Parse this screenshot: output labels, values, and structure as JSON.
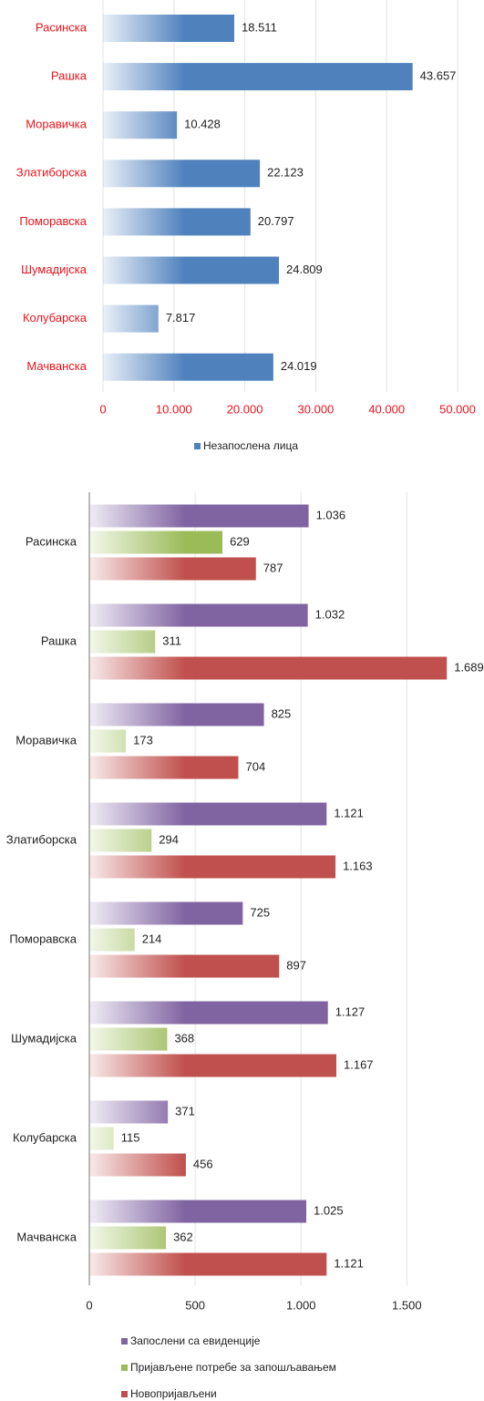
{
  "chart_data": [
    {
      "type": "bar",
      "orientation": "horizontal",
      "categories": [
        "Расинска",
        "Рашка",
        "Моравичка",
        "Златиборска",
        "Поморавска",
        "Шумадијска",
        "Колубарска",
        "Мачванска"
      ],
      "series": [
        {
          "name": "Незапослена лица",
          "color": "#4f81bd",
          "values": [
            18511,
            43657,
            10428,
            22123,
            20797,
            24809,
            7817,
            24019
          ],
          "value_labels": [
            "18.511",
            "43.657",
            "10.428",
            "22.123",
            "20.797",
            "24.809",
            "7.817",
            "24.019"
          ]
        }
      ],
      "xlim": [
        0,
        50000
      ],
      "xticks": [
        0,
        {
          "value": 10000,
          "label": "10.000"
        },
        {
          "value": 20000,
          "label": "20.000"
        },
        {
          "value": 30000,
          "label": "30.000"
        },
        {
          "value": 40000,
          "label": "40.000"
        },
        {
          "value": 50000,
          "label": "50.000"
        }
      ],
      "grid": true,
      "legend": "bottom"
    },
    {
      "type": "bar",
      "orientation": "horizontal",
      "categories": [
        "Расинска",
        "Рашка",
        "Моравичка",
        "Златиборска",
        "Поморавска",
        "Шумадијска",
        "Колубарска",
        "Мачванска"
      ],
      "series": [
        {
          "name": "Запослени са евиденције",
          "color": "#8064a2",
          "values": [
            1036,
            1032,
            825,
            1121,
            725,
            1127,
            371,
            1025
          ],
          "value_labels": [
            "1.036",
            "1.032",
            "825",
            "1.121",
            "725",
            "1.127",
            "371",
            "1.025"
          ]
        },
        {
          "name": "Пријављене потребе за запошљавањем",
          "color": "#9bbb59",
          "values": [
            629,
            311,
            173,
            294,
            214,
            368,
            115,
            362
          ],
          "value_labels": [
            "629",
            "311",
            "173",
            "294",
            "214",
            "368",
            "115",
            "362"
          ]
        },
        {
          "name": "Новопријављени",
          "color": "#c0504d",
          "values": [
            787,
            1689,
            704,
            1163,
            897,
            1167,
            456,
            1121
          ],
          "value_labels": [
            "787",
            "1.689",
            "704",
            "1.163",
            "897",
            "1.167",
            "456",
            "1.121"
          ]
        }
      ],
      "xlim": [
        0,
        1800
      ],
      "xticks": [
        0,
        500,
        {
          "value": 1000,
          "label": "1.000"
        },
        {
          "value": 1500,
          "label": "1.500"
        }
      ],
      "grid": true,
      "legend": "bottom"
    }
  ]
}
